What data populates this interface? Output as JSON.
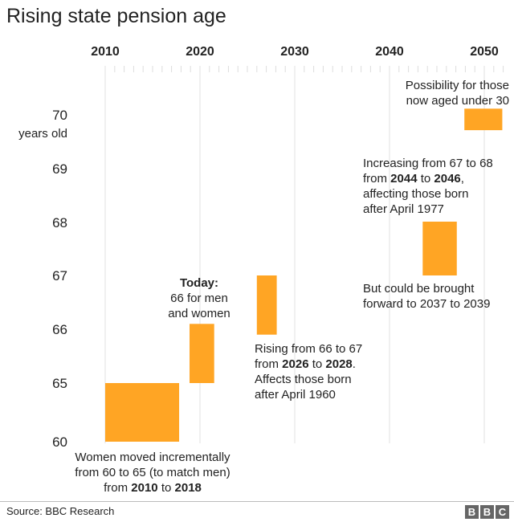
{
  "chart_data": {
    "type": "bar",
    "title": "Rising state pension age",
    "xaxis": {
      "ticks": [
        "2010",
        "2020",
        "2030",
        "2040",
        "2050"
      ],
      "range": [
        2010,
        2052
      ],
      "grid": true,
      "position": "top"
    },
    "yaxis": {
      "ticks": [
        "60",
        "65",
        "66",
        "67",
        "68",
        "69",
        "70"
      ],
      "label": "years old"
    },
    "bar_color": "#FFA524",
    "series": [
      {
        "x_start": 2010,
        "x_end": 2017.8,
        "y_from": 60,
        "y_to": 65
      },
      {
        "x_start": 2018.9,
        "x_end": 2021.5,
        "y_from": 65,
        "y_to": 66.1
      },
      {
        "x_start": 2026,
        "x_end": 2028.1,
        "y_from": 65.9,
        "y_to": 67
      },
      {
        "x_start": 2043.5,
        "x_end": 2047.1,
        "y_from": 67,
        "y_to": 68
      },
      {
        "x_start": 2047.9,
        "x_end": 2051.9,
        "y_from": 69.7,
        "y_to": 70.1
      }
    ],
    "annotations": {
      "today_bold": "Today:",
      "today": [
        "66 for men",
        "and women"
      ],
      "women": {
        "l1": "Women moved incrementally",
        "l2": "from 60 to 65 (to match men)",
        "l3a": "from ",
        "l3b": "2010",
        "l3c": " to ",
        "l3d": "2018"
      },
      "rising": {
        "l1": "Rising from 66 to 67",
        "l2a": "from ",
        "l2b": "2026",
        "l2c": " to ",
        "l2d": "2028",
        "l2e": ".",
        "l3": "Affects those born",
        "l4": "after April 1960"
      },
      "increasing": {
        "l1": "Increasing from 67 to 68",
        "l2a": "from ",
        "l2b": "2044",
        "l2c": " to ",
        "l2d": "2046",
        "l2e": ",",
        "l3": "affecting those born",
        "l4": "after April 1977"
      },
      "forward": {
        "l1": "But could be brought",
        "l2": "forward to 2037 to 2039"
      },
      "possibility": {
        "l1": "Possibility for those",
        "l2": "now aged under 30"
      }
    }
  },
  "footer": {
    "source": "Source: BBC Research",
    "logo": [
      "B",
      "B",
      "C"
    ]
  }
}
